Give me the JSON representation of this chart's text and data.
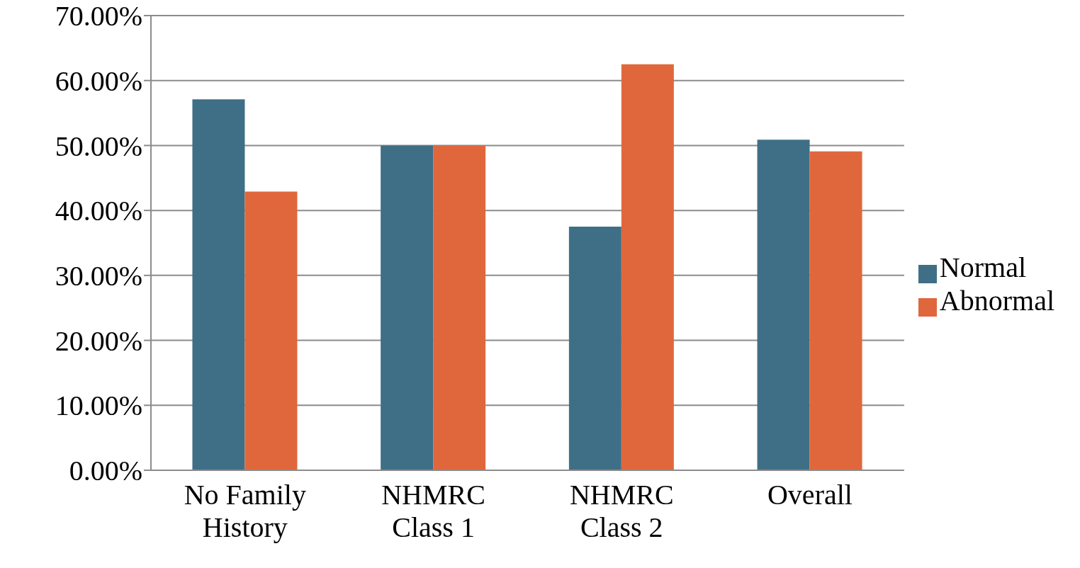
{
  "chart_data": {
    "type": "bar",
    "categories": [
      "No Family History",
      "NHMRC Class 1",
      "NHMRC Class 2",
      "Overall"
    ],
    "series": [
      {
        "name": "Normal",
        "color": "#3f6f86",
        "values": [
          57.1,
          50,
          37.5,
          50.9
        ]
      },
      {
        "name": "Abnormal",
        "color": "#e0673c",
        "values": [
          42.9,
          50,
          62.5,
          49.1
        ]
      }
    ],
    "ylim": [
      0,
      70
    ],
    "yticks": [
      {
        "value": 0,
        "label": "0.00%"
      },
      {
        "value": 10,
        "label": "10.00%"
      },
      {
        "value": 20,
        "label": "20.00%"
      },
      {
        "value": 30,
        "label": "30.00%"
      },
      {
        "value": 40,
        "label": "40.00%"
      },
      {
        "value": 50,
        "label": "50.00%"
      },
      {
        "value": 60,
        "label": "60.00%"
      },
      {
        "value": 70,
        "label": "70.00%"
      }
    ],
    "grid": "y",
    "legend": "right"
  }
}
